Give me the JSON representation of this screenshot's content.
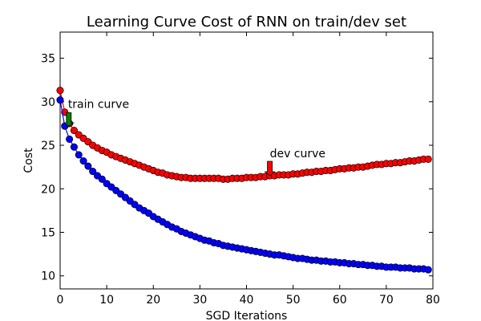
{
  "chart_data": {
    "type": "line",
    "title": "Learning Curve Cost of RNN on train/dev set",
    "xlabel": "SGD Iterations",
    "ylabel": "Cost",
    "xlim": [
      0,
      80
    ],
    "ylim": [
      8.5,
      38
    ],
    "xticks": [
      0,
      10,
      20,
      30,
      40,
      50,
      60,
      70,
      80
    ],
    "yticks": [
      10,
      15,
      20,
      25,
      30,
      35
    ],
    "grid": false,
    "series": [
      {
        "name": "dev curve",
        "color": "#ff0000",
        "x": [
          0,
          1,
          2,
          3,
          4,
          5,
          6,
          7,
          8,
          9,
          10,
          11,
          12,
          13,
          14,
          15,
          16,
          17,
          18,
          19,
          20,
          21,
          22,
          23,
          24,
          25,
          26,
          27,
          28,
          29,
          30,
          31,
          32,
          33,
          34,
          35,
          36,
          37,
          38,
          39,
          40,
          41,
          42,
          43,
          44,
          45,
          46,
          47,
          48,
          49,
          50,
          51,
          52,
          53,
          54,
          55,
          56,
          57,
          58,
          59,
          60,
          61,
          62,
          63,
          64,
          65,
          66,
          67,
          68,
          69,
          70,
          71,
          72,
          73,
          74,
          75,
          76,
          77,
          78,
          79
        ],
        "values": [
          31.3,
          28.8,
          27.5,
          26.7,
          26.2,
          25.8,
          25.4,
          25.0,
          24.7,
          24.4,
          24.2,
          23.9,
          23.7,
          23.5,
          23.3,
          23.1,
          22.9,
          22.7,
          22.5,
          22.3,
          22.1,
          21.9,
          21.8,
          21.6,
          21.5,
          21.4,
          21.3,
          21.3,
          21.2,
          21.2,
          21.2,
          21.2,
          21.2,
          21.2,
          21.2,
          21.1,
          21.1,
          21.2,
          21.2,
          21.2,
          21.3,
          21.3,
          21.3,
          21.4,
          21.4,
          21.5,
          21.5,
          21.6,
          21.6,
          21.6,
          21.7,
          21.7,
          21.8,
          21.9,
          21.9,
          22.0,
          22.0,
          22.1,
          22.1,
          22.2,
          22.3,
          22.3,
          22.4,
          22.4,
          22.5,
          22.5,
          22.6,
          22.7,
          22.8,
          22.8,
          22.9,
          22.9,
          23.0,
          23.0,
          23.1,
          23.2,
          23.2,
          23.3,
          23.4,
          23.4
        ]
      },
      {
        "name": "train curve",
        "color": "#0000ff",
        "x": [
          0,
          1,
          2,
          3,
          4,
          5,
          6,
          7,
          8,
          9,
          10,
          11,
          12,
          13,
          14,
          15,
          16,
          17,
          18,
          19,
          20,
          21,
          22,
          23,
          24,
          25,
          26,
          27,
          28,
          29,
          30,
          31,
          32,
          33,
          34,
          35,
          36,
          37,
          38,
          39,
          40,
          41,
          42,
          43,
          44,
          45,
          46,
          47,
          48,
          49,
          50,
          51,
          52,
          53,
          54,
          55,
          56,
          57,
          58,
          59,
          60,
          61,
          62,
          63,
          64,
          65,
          66,
          67,
          68,
          69,
          70,
          71,
          72,
          73,
          74,
          75,
          76,
          77,
          78,
          79
        ],
        "values": [
          30.2,
          27.2,
          25.7,
          24.8,
          23.9,
          23.2,
          22.6,
          22.0,
          21.5,
          21.1,
          20.6,
          20.2,
          19.8,
          19.4,
          19.0,
          18.6,
          18.2,
          17.8,
          17.5,
          17.2,
          16.8,
          16.5,
          16.2,
          15.9,
          15.6,
          15.4,
          15.1,
          14.9,
          14.7,
          14.5,
          14.3,
          14.1,
          14.0,
          13.8,
          13.7,
          13.5,
          13.4,
          13.3,
          13.2,
          13.1,
          13.0,
          12.9,
          12.8,
          12.7,
          12.6,
          12.5,
          12.4,
          12.4,
          12.3,
          12.2,
          12.1,
          12.0,
          12.0,
          11.9,
          11.8,
          11.8,
          11.7,
          11.7,
          11.6,
          11.6,
          11.5,
          11.5,
          11.4,
          11.4,
          11.3,
          11.3,
          11.2,
          11.2,
          11.1,
          11.1,
          11.0,
          11.0,
          11.0,
          10.9,
          10.9,
          10.9,
          10.8,
          10.8,
          10.8,
          10.7
        ]
      }
    ],
    "annotations": [
      {
        "text": "train curve",
        "xy": [
          1,
          27.2
        ]
      },
      {
        "text": "dev curve",
        "xy": [
          45,
          21.5
        ]
      }
    ],
    "annotation_arrow_colors": {
      "train curve": "#008000",
      "dev curve": "#ff0000"
    }
  }
}
